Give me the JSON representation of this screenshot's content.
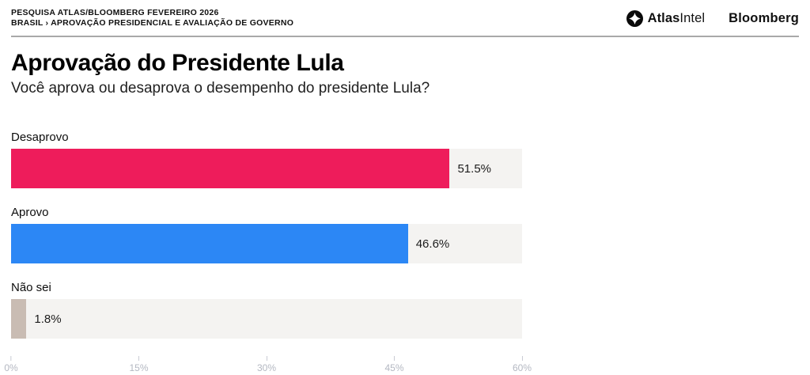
{
  "header": {
    "line1": "PESQUISA ATLAS/BLOOMBERG FEVEREIRO 2026",
    "line2": "BRASIL › APROVAÇÃO PRESIDENCIAL E AVALIAÇÃO DE GOVERNO",
    "atlas_bold": "Atlas",
    "atlas_light": "Intel",
    "bloomberg": "Bloomberg"
  },
  "title": "Aprovação do Presidente Lula",
  "subtitle": "Você aprova ou desaprova o desempenho do presidente Lula?",
  "chart_data": {
    "type": "bar",
    "orientation": "horizontal",
    "title": "Aprovação do Presidente Lula",
    "subtitle": "Você aprova ou desaprova o desempenho do presidente Lula?",
    "categories": [
      "Desaprovo",
      "Aprovo",
      "Não sei"
    ],
    "values": [
      51.5,
      46.6,
      1.8
    ],
    "value_labels": [
      "51.5%",
      "46.6%",
      "1.8%"
    ],
    "colors": [
      "#ee1c5b",
      "#2c87f5",
      "#c9bcb3"
    ],
    "track_color": "#f4f3f1",
    "xlabel": "",
    "ylabel": "",
    "xlim": [
      0,
      60
    ],
    "x_ticks": [
      0,
      15,
      30,
      45,
      60
    ],
    "x_tick_labels": [
      "0%",
      "15%",
      "30%",
      "45%",
      "60%"
    ],
    "grid": false,
    "legend": false
  }
}
